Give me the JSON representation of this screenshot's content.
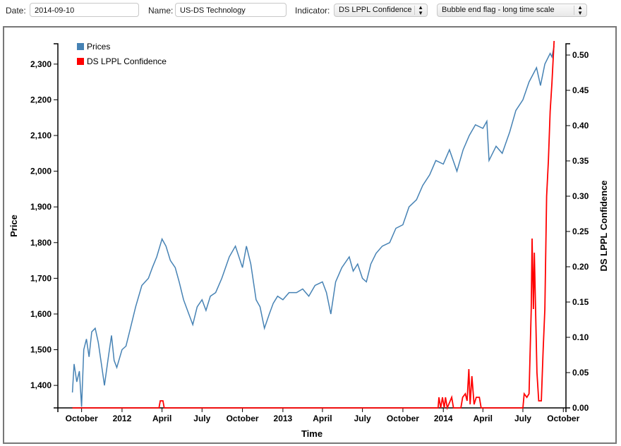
{
  "controls": {
    "date_label": "Date:",
    "date_value": "2014-09-10",
    "name_label": "Name:",
    "name_value": "US-DS Technology",
    "indicator_label": "Indicator:",
    "indicator_value": "DS LPPL Confidence",
    "flag_value": "Bubble end flag - long time scale"
  },
  "chart_data": {
    "type": "line",
    "xlabel": "Time",
    "ylabel": "Price",
    "y2label": "DS LPPL Confidence",
    "xlim": [
      "2011-08-08",
      "2014-10-07"
    ],
    "ylim": [
      1337,
      2357
    ],
    "y2lim": [
      0,
      0.516
    ],
    "grid": false,
    "legend_position": "top-left",
    "colors": {
      "prices": "#4682b4",
      "confidence": "#ff0000"
    },
    "x_ticks": [
      {
        "date": "2011-10-01",
        "label": "October"
      },
      {
        "date": "2012-01-01",
        "label": "2012"
      },
      {
        "date": "2012-04-01",
        "label": "April"
      },
      {
        "date": "2012-07-01",
        "label": "July"
      },
      {
        "date": "2012-10-01",
        "label": "October"
      },
      {
        "date": "2013-01-01",
        "label": "2013"
      },
      {
        "date": "2013-04-01",
        "label": "April"
      },
      {
        "date": "2013-07-01",
        "label": "July"
      },
      {
        "date": "2013-10-01",
        "label": "October"
      },
      {
        "date": "2014-01-01",
        "label": "2014"
      },
      {
        "date": "2014-04-01",
        "label": "April"
      },
      {
        "date": "2014-07-01",
        "label": "July"
      },
      {
        "date": "2014-10-01",
        "label": "October"
      }
    ],
    "y_ticks": [
      {
        "v": 1400,
        "label": "1,400"
      },
      {
        "v": 1500,
        "label": "1,500"
      },
      {
        "v": 1600,
        "label": "1,600"
      },
      {
        "v": 1700,
        "label": "1,700"
      },
      {
        "v": 1800,
        "label": "1,800"
      },
      {
        "v": 1900,
        "label": "1,900"
      },
      {
        "v": 2000,
        "label": "2,000"
      },
      {
        "v": 2100,
        "label": "2,100"
      },
      {
        "v": 2200,
        "label": "2,200"
      },
      {
        "v": 2300,
        "label": "2,300"
      }
    ],
    "y2_ticks": [
      {
        "v": 0,
        "label": "0.00"
      },
      {
        "v": 0.05,
        "label": "0.05"
      },
      {
        "v": 0.1,
        "label": "0.10"
      },
      {
        "v": 0.15,
        "label": "0.15"
      },
      {
        "v": 0.2,
        "label": "0.20"
      },
      {
        "v": 0.25,
        "label": "0.25"
      },
      {
        "v": 0.3,
        "label": "0.30"
      },
      {
        "v": 0.35,
        "label": "0.35"
      },
      {
        "v": 0.4,
        "label": "0.40"
      },
      {
        "v": 0.45,
        "label": "0.45"
      },
      {
        "v": 0.5,
        "label": "0.50"
      }
    ],
    "series": [
      {
        "name": "Prices",
        "axis": "left",
        "points": [
          [
            "2011-09-10",
            1380
          ],
          [
            "2011-09-14",
            1460
          ],
          [
            "2011-09-20",
            1410
          ],
          [
            "2011-09-26",
            1440
          ],
          [
            "2011-10-01",
            1340
          ],
          [
            "2011-10-06",
            1500
          ],
          [
            "2011-10-12",
            1530
          ],
          [
            "2011-10-18",
            1480
          ],
          [
            "2011-10-24",
            1550
          ],
          [
            "2011-11-01",
            1560
          ],
          [
            "2011-11-08",
            1520
          ],
          [
            "2011-11-15",
            1460
          ],
          [
            "2011-11-22",
            1400
          ],
          [
            "2011-12-01",
            1480
          ],
          [
            "2011-12-08",
            1540
          ],
          [
            "2011-12-14",
            1470
          ],
          [
            "2011-12-20",
            1450
          ],
          [
            "2012-01-01",
            1500
          ],
          [
            "2012-01-10",
            1510
          ],
          [
            "2012-01-20",
            1560
          ],
          [
            "2012-02-01",
            1620
          ],
          [
            "2012-02-15",
            1680
          ],
          [
            "2012-03-01",
            1700
          ],
          [
            "2012-03-10",
            1730
          ],
          [
            "2012-03-20",
            1760
          ],
          [
            "2012-04-01",
            1810
          ],
          [
            "2012-04-10",
            1790
          ],
          [
            "2012-04-20",
            1750
          ],
          [
            "2012-05-01",
            1730
          ],
          [
            "2012-05-10",
            1690
          ],
          [
            "2012-05-20",
            1640
          ],
          [
            "2012-06-01",
            1600
          ],
          [
            "2012-06-10",
            1570
          ],
          [
            "2012-06-20",
            1620
          ],
          [
            "2012-07-01",
            1640
          ],
          [
            "2012-07-10",
            1610
          ],
          [
            "2012-07-20",
            1650
          ],
          [
            "2012-08-01",
            1660
          ],
          [
            "2012-08-15",
            1700
          ],
          [
            "2012-09-01",
            1760
          ],
          [
            "2012-09-15",
            1790
          ],
          [
            "2012-10-01",
            1730
          ],
          [
            "2012-10-10",
            1790
          ],
          [
            "2012-10-20",
            1740
          ],
          [
            "2012-11-01",
            1640
          ],
          [
            "2012-11-10",
            1620
          ],
          [
            "2012-11-20",
            1560
          ],
          [
            "2012-12-01",
            1600
          ],
          [
            "2012-12-10",
            1630
          ],
          [
            "2012-12-20",
            1650
          ],
          [
            "2013-01-01",
            1640
          ],
          [
            "2013-01-15",
            1660
          ],
          [
            "2013-02-01",
            1660
          ],
          [
            "2013-02-15",
            1670
          ],
          [
            "2013-03-01",
            1650
          ],
          [
            "2013-03-15",
            1680
          ],
          [
            "2013-04-01",
            1690
          ],
          [
            "2013-04-10",
            1660
          ],
          [
            "2013-04-20",
            1600
          ],
          [
            "2013-05-01",
            1690
          ],
          [
            "2013-05-15",
            1730
          ],
          [
            "2013-06-01",
            1760
          ],
          [
            "2013-06-10",
            1720
          ],
          [
            "2013-06-20",
            1740
          ],
          [
            "2013-07-01",
            1700
          ],
          [
            "2013-07-10",
            1690
          ],
          [
            "2013-07-20",
            1740
          ],
          [
            "2013-08-01",
            1770
          ],
          [
            "2013-08-15",
            1790
          ],
          [
            "2013-09-01",
            1800
          ],
          [
            "2013-09-15",
            1840
          ],
          [
            "2013-10-01",
            1850
          ],
          [
            "2013-10-15",
            1900
          ],
          [
            "2013-11-01",
            1920
          ],
          [
            "2013-11-15",
            1960
          ],
          [
            "2013-12-01",
            1990
          ],
          [
            "2013-12-15",
            2030
          ],
          [
            "2014-01-01",
            2020
          ],
          [
            "2014-01-15",
            2060
          ],
          [
            "2014-02-01",
            2000
          ],
          [
            "2014-02-15",
            2060
          ],
          [
            "2014-03-01",
            2100
          ],
          [
            "2014-03-15",
            2130
          ],
          [
            "2014-04-01",
            2120
          ],
          [
            "2014-04-10",
            2140
          ],
          [
            "2014-04-15",
            2030
          ],
          [
            "2014-05-01",
            2070
          ],
          [
            "2014-05-15",
            2050
          ],
          [
            "2014-06-01",
            2110
          ],
          [
            "2014-06-15",
            2170
          ],
          [
            "2014-07-01",
            2200
          ],
          [
            "2014-07-15",
            2250
          ],
          [
            "2014-08-01",
            2290
          ],
          [
            "2014-08-10",
            2240
          ],
          [
            "2014-08-20",
            2300
          ],
          [
            "2014-09-01",
            2330
          ],
          [
            "2014-09-05",
            2320
          ],
          [
            "2014-09-10",
            2350
          ]
        ]
      },
      {
        "name": "DS LPPL Confidence",
        "axis": "right",
        "points": [
          [
            "2011-09-10",
            0
          ],
          [
            "2012-03-25",
            0
          ],
          [
            "2012-03-28",
            0.01
          ],
          [
            "2012-04-03",
            0.01
          ],
          [
            "2012-04-06",
            0
          ],
          [
            "2013-12-20",
            0
          ],
          [
            "2013-12-22",
            0.015
          ],
          [
            "2013-12-26",
            0
          ],
          [
            "2013-12-30",
            0.015
          ],
          [
            "2014-01-03",
            0
          ],
          [
            "2014-01-06",
            0.015
          ],
          [
            "2014-01-10",
            0
          ],
          [
            "2014-01-20",
            0.015
          ],
          [
            "2014-01-24",
            0
          ],
          [
            "2014-02-10",
            0
          ],
          [
            "2014-02-14",
            0.015
          ],
          [
            "2014-02-20",
            0.02
          ],
          [
            "2014-02-24",
            0.01
          ],
          [
            "2014-02-28",
            0.055
          ],
          [
            "2014-03-03",
            0.005
          ],
          [
            "2014-03-07",
            0.045
          ],
          [
            "2014-03-12",
            0.005
          ],
          [
            "2014-03-17",
            0.015
          ],
          [
            "2014-03-24",
            0.015
          ],
          [
            "2014-03-28",
            0
          ],
          [
            "2014-07-01",
            0
          ],
          [
            "2014-07-04",
            0.02
          ],
          [
            "2014-07-10",
            0.015
          ],
          [
            "2014-07-15",
            0.02
          ],
          [
            "2014-07-20",
            0.14
          ],
          [
            "2014-07-22",
            0.24
          ],
          [
            "2014-07-25",
            0.14
          ],
          [
            "2014-07-27",
            0.22
          ],
          [
            "2014-08-02",
            0.05
          ],
          [
            "2014-08-06",
            0.01
          ],
          [
            "2014-08-12",
            0.01
          ],
          [
            "2014-08-16",
            0.08
          ],
          [
            "2014-08-20",
            0.14
          ],
          [
            "2014-08-24",
            0.3
          ],
          [
            "2014-08-28",
            0.35
          ],
          [
            "2014-09-01",
            0.42
          ],
          [
            "2014-09-05",
            0.46
          ],
          [
            "2014-09-10",
            0.52
          ]
        ]
      }
    ]
  }
}
